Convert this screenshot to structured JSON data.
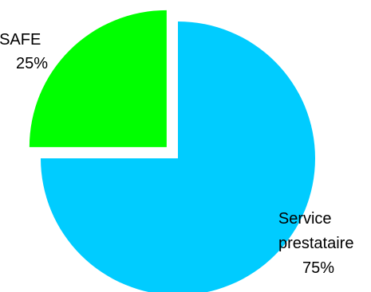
{
  "chart_data": {
    "type": "pie",
    "title": "",
    "slices": [
      {
        "label_lines": [
          "SAFE",
          "25%"
        ],
        "name": "SAFE",
        "value": 25,
        "color": "#00ff00",
        "exploded": true
      },
      {
        "label_lines": [
          "Service",
          "prestataire",
          "75%"
        ],
        "name": "Service prestataire",
        "value": 75,
        "color": "#00ccff",
        "exploded": false
      }
    ],
    "start_angle": "12 o'clock",
    "direction": "counter-clockwise for SAFE, remainder clockwise",
    "legend": "none"
  }
}
